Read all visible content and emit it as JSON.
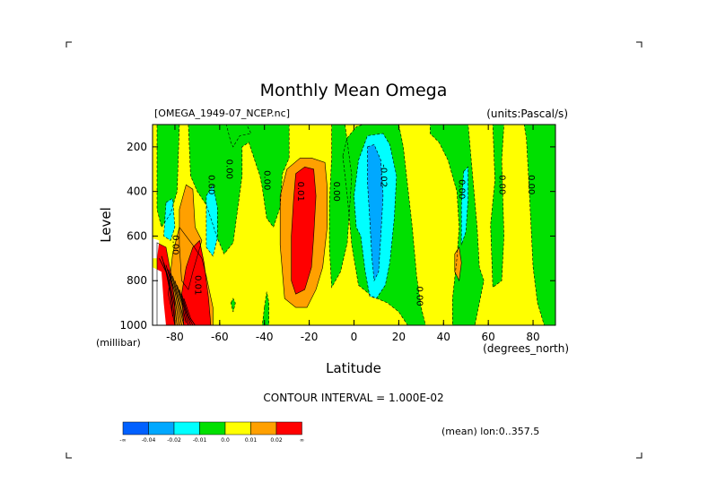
{
  "chart_data": {
    "type": "heatmap",
    "title": "Monthly Mean Omega",
    "source_label": "[OMEGA_1949-07_NCEP.nc]",
    "units_label": "(units:Pascal/s)",
    "xlabel": "Latitude",
    "x_units": "(degrees_north)",
    "ylabel": "Level",
    "y_units": "(millibar)",
    "xlim": [
      -90,
      90
    ],
    "ylim": [
      1000,
      100
    ],
    "y_axis": "inverted",
    "x_ticks": [
      {
        "value": -80,
        "label": "-80"
      },
      {
        "value": -60,
        "label": "-60"
      },
      {
        "value": -40,
        "label": "-40"
      },
      {
        "value": -20,
        "label": "-20"
      },
      {
        "value": 0,
        "label": "0"
      },
      {
        "value": 20,
        "label": "20"
      },
      {
        "value": 40,
        "label": "40"
      },
      {
        "value": 60,
        "label": "60"
      },
      {
        "value": 80,
        "label": "80"
      }
    ],
    "y_ticks": [
      {
        "value": 200,
        "label": "200"
      },
      {
        "value": 400,
        "label": "400"
      },
      {
        "value": 600,
        "label": "600"
      },
      {
        "value": 800,
        "label": "800"
      },
      {
        "value": 1000,
        "label": "1000"
      }
    ],
    "contour_interval_text": "CONTOUR INTERVAL = 1.000E-02",
    "mean_text": "(mean) lon:0..357.5",
    "contour_labels": [
      {
        "x": -65,
        "y": 370,
        "text": "0.00"
      },
      {
        "x": -57,
        "y": 300,
        "text": "0.00"
      },
      {
        "x": -40,
        "y": 350,
        "text": "0.00"
      },
      {
        "x": -25,
        "y": 400,
        "text": "0.01"
      },
      {
        "x": -9,
        "y": 400,
        "text": "0.00"
      },
      {
        "x": 12,
        "y": 330,
        "text": "-0.02"
      },
      {
        "x": 47,
        "y": 390,
        "text": "0.00"
      },
      {
        "x": 65,
        "y": 370,
        "text": "0.00"
      },
      {
        "x": 78,
        "y": 370,
        "text": "0.00"
      },
      {
        "x": 28,
        "y": 870,
        "text": "0.00"
      },
      {
        "x": -81,
        "y": 640,
        "text": "0.00"
      },
      {
        "x": -71,
        "y": 820,
        "text": "0.01"
      }
    ],
    "legend": {
      "colors": [
        "#0060ff",
        "#00a8ff",
        "#00ffff",
        "#00e000",
        "#ffff00",
        "#ffa000",
        "#ff0000"
      ],
      "labels": [
        "-∞",
        "-0.04",
        "-0.02",
        "-0.01",
        "0.0",
        "0.01",
        "0.02",
        "∞"
      ]
    },
    "regions": [
      {
        "level": 0,
        "color": "#ffff00",
        "points": [
          [
            -90,
            100
          ],
          [
            90,
            100
          ],
          [
            90,
            1000
          ],
          [
            -90,
            1000
          ]
        ]
      },
      {
        "level": -1,
        "color": "#00e000",
        "points": [
          [
            -88,
            100
          ],
          [
            -78,
            100
          ],
          [
            -79,
            400
          ],
          [
            -82,
            500
          ],
          [
            -86,
            560
          ],
          [
            -88,
            480
          ]
        ]
      },
      {
        "level": -1,
        "color": "#00e000",
        "points": [
          [
            -74,
            100
          ],
          [
            -73,
            330
          ],
          [
            -70,
            400
          ],
          [
            -66,
            460
          ],
          [
            -61,
            610
          ],
          [
            -58,
            680
          ],
          [
            -54,
            630
          ],
          [
            -50,
            330
          ],
          [
            -50,
            200
          ],
          [
            -47,
            180
          ],
          [
            -44,
            270
          ],
          [
            -43,
            300
          ],
          [
            -42,
            330
          ],
          [
            -41,
            380
          ],
          [
            -39,
            520
          ],
          [
            -36,
            560
          ],
          [
            -33,
            470
          ],
          [
            -32,
            320
          ],
          [
            -29,
            250
          ],
          [
            -29,
            100
          ]
        ]
      },
      {
        "level": -1,
        "color": "#00e000",
        "points": [
          [
            -57,
            100
          ],
          [
            -48,
            100
          ],
          [
            -46,
            140
          ],
          [
            -51,
            150
          ],
          [
            -54,
            200
          ],
          [
            -55,
            180
          ]
        ]
      },
      {
        "level": -1,
        "color": "#00e000",
        "points": [
          [
            -10,
            100
          ],
          [
            -4,
            100
          ],
          [
            -1,
            330
          ],
          [
            -3,
            630
          ],
          [
            -6,
            760
          ],
          [
            -10,
            830
          ],
          [
            -11,
            650
          ],
          [
            -11,
            450
          ],
          [
            -10,
            250
          ]
        ]
      },
      {
        "level": -1,
        "color": "#00e000",
        "points": [
          [
            -5,
            240
          ],
          [
            -3,
            160
          ],
          [
            1,
            110
          ],
          [
            4,
            100
          ],
          [
            20,
            100
          ],
          [
            22,
            200
          ],
          [
            24,
            380
          ],
          [
            26,
            560
          ],
          [
            28,
            780
          ],
          [
            30,
            920
          ],
          [
            32,
            1000
          ],
          [
            24,
            1000
          ],
          [
            20,
            940
          ],
          [
            15,
            900
          ],
          [
            8,
            870
          ],
          [
            2,
            820
          ],
          [
            -1,
            640
          ],
          [
            -3,
            420
          ]
        ]
      },
      {
        "level": -1,
        "color": "#00e000",
        "points": [
          [
            34,
            100
          ],
          [
            51,
            100
          ],
          [
            53,
            330
          ],
          [
            55,
            560
          ],
          [
            56,
            740
          ],
          [
            58,
            800
          ],
          [
            56,
            900
          ],
          [
            54,
            1000
          ],
          [
            44,
            1000
          ],
          [
            44,
            880
          ],
          [
            46,
            700
          ],
          [
            47,
            560
          ],
          [
            46,
            400
          ],
          [
            42,
            260
          ],
          [
            38,
            180
          ],
          [
            34,
            140
          ]
        ]
      },
      {
        "level": -1,
        "color": "#00e000",
        "points": [
          [
            62,
            100
          ],
          [
            67,
            100
          ],
          [
            66,
            260
          ],
          [
            67,
            600
          ],
          [
            66,
            800
          ],
          [
            62,
            830
          ],
          [
            61,
            550
          ],
          [
            63,
            350
          ]
        ]
      },
      {
        "level": -1,
        "color": "#00e000",
        "points": [
          [
            76,
            100
          ],
          [
            90,
            100
          ],
          [
            90,
            1000
          ],
          [
            85,
            1000
          ],
          [
            82,
            900
          ],
          [
            80,
            740
          ],
          [
            79,
            540
          ],
          [
            78,
            340
          ],
          [
            77,
            160
          ]
        ]
      },
      {
        "level": -1,
        "color": "#00e000",
        "points": [
          [
            -40,
            920
          ],
          [
            -39,
            850
          ],
          [
            -38,
            900
          ],
          [
            -38,
            1000
          ],
          [
            -41,
            1000
          ]
        ]
      },
      {
        "level": -1,
        "color": "#00e000",
        "points": [
          [
            -55,
            900
          ],
          [
            -54,
            880
          ],
          [
            -53,
            900
          ],
          [
            -54,
            940
          ]
        ]
      },
      {
        "level": -2,
        "color": "#00ffff",
        "points": [
          [
            -66,
            420
          ],
          [
            -63,
            370
          ],
          [
            -61,
            470
          ],
          [
            -61,
            610
          ],
          [
            -63,
            690
          ],
          [
            -66,
            650
          ]
        ]
      },
      {
        "level": -2,
        "color": "#00ffff",
        "points": [
          [
            -84,
            450
          ],
          [
            -81,
            430
          ],
          [
            -80,
            560
          ],
          [
            -82,
            620
          ],
          [
            -85,
            600
          ]
        ]
      },
      {
        "level": -2,
        "color": "#00ffff",
        "points": [
          [
            0,
            420
          ],
          [
            2,
            260
          ],
          [
            6,
            150
          ],
          [
            13,
            140
          ],
          [
            16,
            190
          ],
          [
            19,
            330
          ],
          [
            18,
            520
          ],
          [
            16,
            720
          ],
          [
            14,
            820
          ],
          [
            10,
            880
          ],
          [
            7,
            870
          ],
          [
            5,
            760
          ],
          [
            3,
            600
          ],
          [
            1,
            560
          ]
        ]
      },
      {
        "level": -2,
        "color": "#00ffff",
        "points": [
          [
            49,
            310
          ],
          [
            51,
            290
          ],
          [
            51,
            430
          ],
          [
            50,
            580
          ],
          [
            48,
            640
          ],
          [
            48,
            460
          ]
        ]
      },
      {
        "level": -3,
        "color": "#00a8ff",
        "points": [
          [
            6,
            200
          ],
          [
            9,
            190
          ],
          [
            12,
            260
          ],
          [
            13,
            420
          ],
          [
            12,
            600
          ],
          [
            11,
            760
          ],
          [
            9,
            800
          ],
          [
            8,
            700
          ],
          [
            7,
            520
          ],
          [
            6,
            360
          ]
        ]
      },
      {
        "level": 1,
        "color": "#ffa000",
        "points": [
          [
            -30,
            300
          ],
          [
            -24,
            250
          ],
          [
            -19,
            250
          ],
          [
            -13,
            270
          ],
          [
            -12,
            380
          ],
          [
            -12,
            560
          ],
          [
            -14,
            740
          ],
          [
            -17,
            840
          ],
          [
            -21,
            920
          ],
          [
            -26,
            920
          ],
          [
            -31,
            880
          ],
          [
            -33,
            640
          ],
          [
            -33,
            420
          ]
        ]
      },
      {
        "level": 1,
        "color": "#ffa000",
        "points": [
          [
            -75,
            370
          ],
          [
            -72,
            390
          ],
          [
            -71,
            560
          ],
          [
            -68,
            620
          ],
          [
            -72,
            760
          ],
          [
            -74,
            840
          ],
          [
            -77,
            800
          ],
          [
            -78,
            640
          ],
          [
            -78,
            480
          ]
        ]
      },
      {
        "level": 1,
        "color": "#ffa000",
        "points": [
          [
            -78,
            560
          ],
          [
            -72,
            640
          ],
          [
            -68,
            700
          ],
          [
            -66,
            780
          ],
          [
            -63,
            920
          ],
          [
            -63,
            1000
          ],
          [
            -80,
            1000
          ],
          [
            -83,
            860
          ],
          [
            -81,
            680
          ]
        ]
      },
      {
        "level": 1,
        "color": "#ffa000",
        "points": [
          [
            45,
            680
          ],
          [
            47,
            650
          ],
          [
            48,
            720
          ],
          [
            47,
            800
          ],
          [
            45,
            760
          ]
        ]
      },
      {
        "level": 2,
        "color": "#ff0000",
        "points": [
          [
            -26,
            320
          ],
          [
            -22,
            290
          ],
          [
            -18,
            300
          ],
          [
            -17,
            420
          ],
          [
            -18,
            600
          ],
          [
            -19,
            740
          ],
          [
            -22,
            840
          ],
          [
            -26,
            860
          ],
          [
            -28,
            800
          ],
          [
            -28,
            600
          ],
          [
            -27,
            440
          ]
        ]
      },
      {
        "level": 2,
        "color": "#ff0000",
        "points": [
          [
            -72,
            650
          ],
          [
            -69,
            620
          ],
          [
            -67,
            720
          ],
          [
            -65,
            880
          ],
          [
            -64,
            1000
          ],
          [
            -76,
            1000
          ],
          [
            -77,
            860
          ],
          [
            -75,
            740
          ]
        ]
      },
      {
        "level": 2,
        "color": "#ff0000",
        "points": [
          [
            -88,
            630
          ],
          [
            -84,
            650
          ],
          [
            -82,
            760
          ],
          [
            -80,
            900
          ],
          [
            -80,
            1000
          ],
          [
            -88,
            1000
          ]
        ]
      }
    ],
    "contour_lines": [
      [
        [
          -87,
          700
        ],
        [
          -84,
          760
        ],
        [
          -82,
          860
        ],
        [
          -81,
          960
        ]
      ],
      [
        [
          -86,
          690
        ],
        [
          -83,
          790
        ],
        [
          -81,
          900
        ],
        [
          -80,
          990
        ]
      ],
      [
        [
          -85,
          720
        ],
        [
          -82,
          820
        ],
        [
          -80,
          920
        ],
        [
          -79,
          1000
        ]
      ],
      [
        [
          -84,
          730
        ],
        [
          -81,
          830
        ],
        [
          -79,
          940
        ],
        [
          -78,
          1000
        ]
      ],
      [
        [
          -83,
          750
        ],
        [
          -80,
          850
        ],
        [
          -78,
          950
        ],
        [
          -77,
          1000
        ]
      ],
      [
        [
          -82,
          760
        ],
        [
          -79,
          870
        ],
        [
          -77,
          960
        ],
        [
          -76,
          1000
        ]
      ],
      [
        [
          -81,
          780
        ],
        [
          -78,
          890
        ],
        [
          -76,
          980
        ]
      ],
      [
        [
          -80,
          800
        ],
        [
          -77,
          900
        ],
        [
          -75,
          990
        ]
      ],
      [
        [
          -79,
          820
        ],
        [
          -76,
          920
        ],
        [
          -74,
          1000
        ]
      ],
      [
        [
          -78,
          840
        ],
        [
          -75,
          940
        ],
        [
          -73,
          1000
        ]
      ],
      [
        [
          -77,
          860
        ],
        [
          -74,
          960
        ],
        [
          -72,
          1000
        ]
      ],
      [
        [
          -76,
          880
        ],
        [
          -73,
          970
        ],
        [
          -71,
          1000
        ]
      ]
    ],
    "missing_data": [
      {
        "points": [
          [
            -90,
            610
          ],
          [
            -87,
            620
          ],
          [
            -88,
            700
          ],
          [
            -90,
            700
          ]
        ]
      },
      {
        "points": [
          [
            -90,
            740
          ],
          [
            -86,
            760
          ],
          [
            -85,
            900
          ],
          [
            -84,
            1000
          ],
          [
            -90,
            1000
          ]
        ]
      }
    ]
  }
}
